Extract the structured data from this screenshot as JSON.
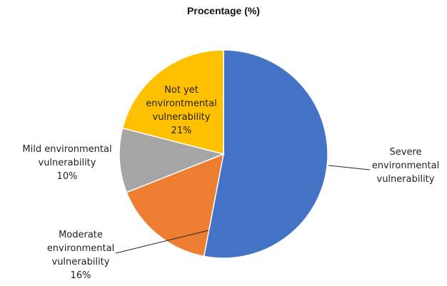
{
  "chart_data": {
    "type": "pie",
    "title": "Procentage (%)",
    "legend": "none",
    "slices": [
      {
        "name": "Severe environmental vulnerability",
        "label_lines": [
          "Severe",
          "environmental",
          "vulnerability"
        ],
        "value": 53,
        "percent_label": "",
        "color": "#4472C4"
      },
      {
        "name": "Moderate environmental vulnerability",
        "label_lines": [
          "Moderate",
          "environmental",
          "vulnerability"
        ],
        "value": 16,
        "percent_label": "16%",
        "color": "#ED7D31"
      },
      {
        "name": "Mild environmental vulnerability",
        "label_lines": [
          "Mild environmental",
          "vulnerability"
        ],
        "value": 10,
        "percent_label": "10%",
        "color": "#A5A5A5"
      },
      {
        "name": "Not yet environmental vulnerability",
        "label_lines": [
          "Not yet",
          "environtmental",
          "vulnerability"
        ],
        "value": 21,
        "percent_label": "21%",
        "color": "#FFC000"
      }
    ]
  }
}
